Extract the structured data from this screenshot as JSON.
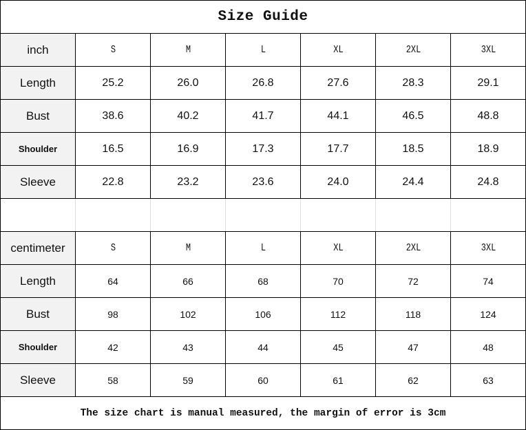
{
  "title": "Size Guide",
  "footer": "The size chart is manual measured, the margin of error is 3cm",
  "inch": {
    "unit": "inch",
    "sizes": [
      "S",
      "M",
      "L",
      "XL",
      "2XL",
      "3XL"
    ],
    "rows": [
      {
        "label": "Length",
        "values": [
          "25.2",
          "26.0",
          "26.8",
          "27.6",
          "28.3",
          "29.1"
        ]
      },
      {
        "label": "Bust",
        "values": [
          "38.6",
          "40.2",
          "41.7",
          "44.1",
          "46.5",
          "48.8"
        ]
      },
      {
        "label": "Shoulder",
        "values": [
          "16.5",
          "16.9",
          "17.3",
          "17.7",
          "18.5",
          "18.9"
        ]
      },
      {
        "label": "Sleeve",
        "values": [
          "22.8",
          "23.2",
          "23.6",
          "24.0",
          "24.4",
          "24.8"
        ]
      }
    ]
  },
  "cm": {
    "unit": "centimeter",
    "sizes": [
      "S",
      "M",
      "L",
      "XL",
      "2XL",
      "3XL"
    ],
    "rows": [
      {
        "label": "Length",
        "values": [
          "64",
          "66",
          "68",
          "70",
          "72",
          "74"
        ]
      },
      {
        "label": "Bust",
        "values": [
          "98",
          "102",
          "106",
          "112",
          "118",
          "124"
        ]
      },
      {
        "label": "Shoulder",
        "values": [
          "42",
          "43",
          "44",
          "45",
          "47",
          "48"
        ]
      },
      {
        "label": "Sleeve",
        "values": [
          "58",
          "59",
          "60",
          "61",
          "62",
          "63"
        ]
      }
    ]
  }
}
